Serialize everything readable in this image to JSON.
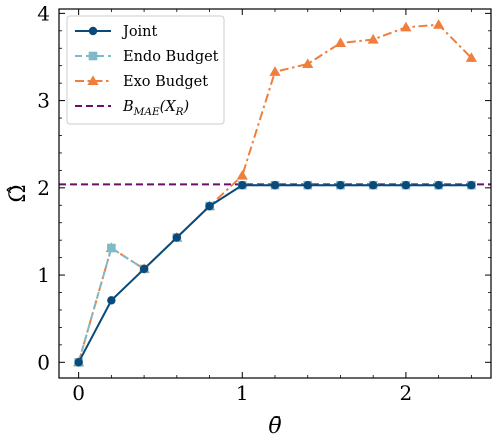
{
  "chart_data": {
    "type": "line",
    "xlabel": "θ̄",
    "ylabel": "Ω̂",
    "xlim": [
      -0.12,
      2.52
    ],
    "ylim": [
      -0.18,
      4.05
    ],
    "xticks": [
      0,
      1,
      2
    ],
    "yticks": [
      0,
      1,
      2,
      3,
      4
    ],
    "tick_labels_x": [
      "0",
      "1",
      "2"
    ],
    "tick_labels_y": [
      "0",
      "1",
      "2",
      "3",
      "4"
    ],
    "grid": false,
    "legend_position": "top-left",
    "series": [
      {
        "name": "Joint",
        "color": "#0a4a7a",
        "marker": "circle",
        "linestyle": "solid",
        "x": [
          0,
          0.2,
          0.4,
          0.6,
          0.8,
          1.0,
          1.2,
          1.4,
          1.6,
          1.8,
          2.0,
          2.2,
          2.4
        ],
        "y": [
          0.0,
          0.71,
          1.07,
          1.43,
          1.79,
          2.03,
          2.03,
          2.03,
          2.03,
          2.03,
          2.03,
          2.03,
          2.03
        ]
      },
      {
        "name": "Endo Budget",
        "color": "#7fbac9",
        "marker": "square",
        "linestyle": "dashed",
        "x": [
          0,
          0.2,
          0.4,
          0.6,
          0.8,
          1.0,
          1.2,
          1.4,
          1.6,
          1.8,
          2.0,
          2.2,
          2.4
        ],
        "y": [
          0.0,
          1.31,
          1.07,
          1.43,
          1.79,
          2.03,
          2.03,
          2.03,
          2.03,
          2.03,
          2.03,
          2.03,
          2.03
        ]
      },
      {
        "name": "Exo Budget",
        "color": "#f07e3c",
        "marker": "triangle",
        "linestyle": "dashdot",
        "x": [
          0,
          0.2,
          0.4,
          0.6,
          0.8,
          1.0,
          1.2,
          1.4,
          1.6,
          1.8,
          2.0,
          2.2,
          2.4
        ],
        "y": [
          0.0,
          1.31,
          1.07,
          1.43,
          1.79,
          2.14,
          3.33,
          3.42,
          3.66,
          3.7,
          3.84,
          3.87,
          3.49
        ]
      }
    ],
    "reference_line": {
      "name": "B_MAE(X_R)",
      "label_main": "B",
      "label_sub": "MAE",
      "label_arg": "(X",
      "label_arg_sub": "R",
      "label_close": ")",
      "y": 2.04,
      "color": "#6a0f6a",
      "linestyle": "dashed"
    }
  }
}
